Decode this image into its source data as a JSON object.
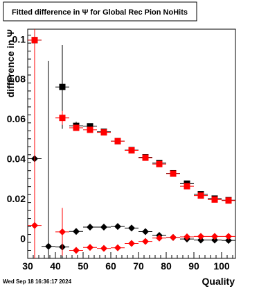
{
  "chart_data": {
    "type": "scatter",
    "title": "Fitted difference in Ψ for Global Rec Pion NoHits",
    "xlabel": "Quality",
    "ylabel": "difference in Ψ",
    "xlim": [
      30,
      105
    ],
    "ylim": [
      -0.01,
      0.105
    ],
    "xticks": [
      30,
      40,
      50,
      60,
      70,
      80,
      90,
      100
    ],
    "yticks": [
      0,
      0.02,
      0.04,
      0.06,
      0.08,
      0.1
    ],
    "ytick_labels": [
      "0",
      "0.02",
      "0.04",
      "0.06",
      "0.08",
      "0.1"
    ],
    "grid": false,
    "legend": "none",
    "series": [
      {
        "marker": "square",
        "color": "#000000",
        "x": [
          32.5,
          42.5,
          47.5,
          52.5,
          57.5,
          62.5,
          67.5,
          72.5,
          77.5,
          82.5,
          87.5,
          92.5,
          97.5,
          102.5
        ],
        "y": [
          0.0995,
          0.076,
          0.0565,
          0.0563,
          0.0535,
          0.0488,
          0.0443,
          0.0407,
          0.0378,
          0.0327,
          0.0275,
          0.0222,
          0.02,
          0.0192
        ],
        "yerr": [
          0.002,
          0.021,
          0.002,
          0.0015,
          0.0012,
          0.001,
          0.001,
          0.001,
          0.001,
          0.0009,
          0.0009,
          0.0009,
          0.0009,
          0.0009
        ]
      },
      {
        "marker": "square",
        "color": "#ff0000",
        "x": [
          32.5,
          42.5,
          47.5,
          52.5,
          57.5,
          62.5,
          67.5,
          72.5,
          77.5,
          82.5,
          87.5,
          92.5,
          97.5,
          102.5
        ],
        "y": [
          0.0995,
          0.0605,
          0.0555,
          0.0545,
          0.0532,
          0.0488,
          0.0442,
          0.0405,
          0.0373,
          0.0325,
          0.0262,
          0.0215,
          0.0195,
          0.019
        ],
        "yerr": [
          0.002,
          0.0035,
          0.0015,
          0.0012,
          0.001,
          0.001,
          0.001,
          0.001,
          0.001,
          0.0009,
          0.0009,
          0.0009,
          0.0009,
          0.0009
        ]
      },
      {
        "marker": "diamond",
        "color": "#000000",
        "x": [
          32.5,
          37.5,
          42.5,
          47.5,
          52.5,
          57.5,
          62.5,
          67.5,
          72.5,
          77.5,
          82.5,
          87.5,
          92.5,
          97.5,
          102.5
        ],
        "y": [
          0.04,
          -0.004,
          -0.0043,
          0.0035,
          0.0057,
          0.0057,
          0.006,
          0.0052,
          0.0034,
          0.0015,
          0.0005,
          -0.0003,
          -0.0008,
          -0.0008,
          -0.001
        ],
        "yerr": [
          0.068,
          0.093,
          0.018,
          0.0015,
          0.001,
          0.001,
          0.001,
          0.0008,
          0.0008,
          0.0008,
          0.0008,
          0.0008,
          0.0008,
          0.0008,
          0.0008
        ]
      },
      {
        "marker": "diamond",
        "color": "#ff0000",
        "x": [
          32.5,
          42.5,
          47.5,
          52.5,
          57.5,
          62.5,
          67.5,
          72.5,
          77.5,
          82.5,
          87.5,
          92.5,
          97.5,
          102.5
        ],
        "y": [
          0.0065,
          0.0033,
          -0.006,
          -0.0045,
          -0.005,
          -0.0047,
          -0.0025,
          -0.0015,
          0.0002,
          0.0005,
          0.0008,
          0.001,
          0.001,
          0.001
        ],
        "yerr": [
          0.1,
          0.012,
          0.0015,
          0.001,
          0.001,
          0.001,
          0.0008,
          0.0008,
          0.0008,
          0.0008,
          0.0008,
          0.0008,
          0.0008,
          0.0008
        ]
      }
    ],
    "xbin_halfwidth": 2.5
  },
  "footer": {
    "timestamp": "Wed Sep 18 16:36:17 2024"
  }
}
